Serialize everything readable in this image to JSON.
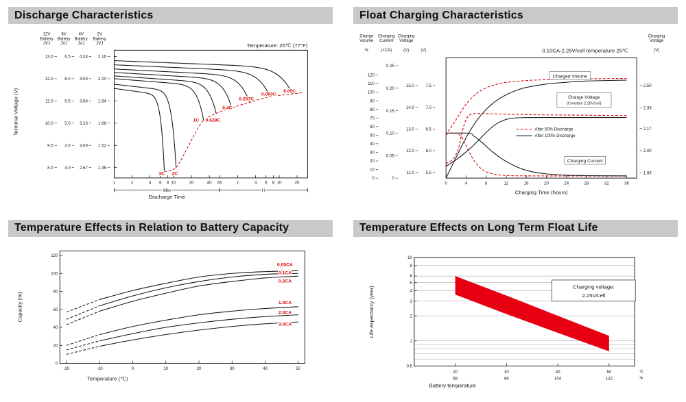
{
  "colors": {
    "red": "#d40000",
    "band_red": "#e60012",
    "header_bg": "#c9c9c9",
    "ink": "#161616"
  },
  "panels": [
    {
      "title": "Discharge Characteristics"
    },
    {
      "title": "Float Charging Characteristics"
    },
    {
      "title": "Temperature Effects in Relation to Battery Capacity"
    },
    {
      "title": "Temperature Effects on Long Term Float Life"
    }
  ],
  "chart_data": [
    {
      "id": "discharge-characteristics",
      "type": "line",
      "title": "Discharge Characteristics",
      "annotation": "Temperature: 25℃ (77°F)",
      "xlabel": "Discharge Time",
      "ylabel": "Terminal Voltage (V)",
      "x_scale": "log",
      "x_regions": [
        {
          "label": "Min",
          "tick_minutes": [
            1,
            2,
            4,
            6,
            8,
            10,
            20,
            40,
            60
          ],
          "tick_labels": [
            "1",
            "2",
            "4",
            "6",
            "8",
            "10",
            "20",
            "40",
            "60"
          ]
        },
        {
          "label": "H",
          "tick_minutes": [
            120,
            240,
            360,
            480,
            600,
            1200
          ],
          "tick_labels": [
            "2",
            "4",
            "6",
            "8",
            "10",
            "20"
          ]
        }
      ],
      "y_axis_columns": [
        {
          "header": [
            "12V",
            "Battery",
            "JVJ"
          ],
          "ticks": [
            "13.0",
            "12.0",
            "11.0",
            "10.0",
            "9.0",
            "8.0"
          ]
        },
        {
          "header": [
            "6V",
            "Battery",
            "JVJ"
          ],
          "ticks": [
            "6.5",
            "6.0",
            "5.5",
            "5.0",
            "4.5",
            "4.0"
          ]
        },
        {
          "header": [
            "4V",
            "Battery",
            "JVJ"
          ],
          "ticks": [
            "4.33",
            "4.00",
            "3.66",
            "3.33",
            "3.00",
            "2.67"
          ]
        },
        {
          "header": [
            "2V",
            "Battery",
            "JVJ"
          ],
          "ticks": [
            "2.16",
            "2.00",
            "1.84",
            "1.68",
            "1.52",
            "1.36"
          ]
        }
      ],
      "y_cell_ticks": [
        2.16,
        2.0,
        1.84,
        1.68,
        1.52,
        1.36
      ],
      "curves": [
        {
          "label": "3C",
          "end_min": 7,
          "v_start": 1.93,
          "v_end": 1.33,
          "label_at": [
            6.3,
            1.307
          ]
        },
        {
          "label": "2C",
          "end_min": 11,
          "v_start": 1.96,
          "v_end": 1.36,
          "label_at": [
            10.5,
            1.307
          ]
        },
        {
          "label": "1C",
          "end_min": 32,
          "v_start": 2.0,
          "v_end": 1.7,
          "label_at": [
            24,
            1.69
          ]
        },
        {
          "label": "0.628C",
          "end_min": 52,
          "v_start": 2.02,
          "v_end": 1.75,
          "label_at": [
            46,
            1.69
          ]
        },
        {
          "label": "0.4C",
          "end_min": 95,
          "v_start": 2.045,
          "v_end": 1.79,
          "label_at": [
            80,
            1.78
          ]
        },
        {
          "label": "0.207C",
          "end_min": 190,
          "v_start": 2.07,
          "v_end": 1.83,
          "label_at": [
            168,
            1.845
          ]
        },
        {
          "label": "0.093C",
          "end_min": 420,
          "v_start": 2.1,
          "v_end": 1.87,
          "label_at": [
            400,
            1.878
          ]
        },
        {
          "label": "0.05C",
          "end_min": 1000,
          "v_start": 2.13,
          "v_end": 1.89,
          "label_at": [
            900,
            1.9
          ]
        }
      ],
      "cutoff_locus": [
        [
          7,
          1.33
        ],
        [
          11,
          1.36
        ],
        [
          17,
          1.5
        ],
        [
          24,
          1.62
        ],
        [
          32,
          1.7
        ],
        [
          52,
          1.75
        ],
        [
          95,
          1.79
        ],
        [
          190,
          1.83
        ],
        [
          420,
          1.87
        ],
        [
          1000,
          1.89
        ],
        [
          1500,
          1.9
        ]
      ]
    },
    {
      "id": "float-charging-characteristics",
      "type": "line",
      "title": "Float Charging Characteristics",
      "annotation": "0.10CA-2.25V/cell  temperature 25℃",
      "xlabel": "Charging Time (hours)",
      "x_ticks": [
        0,
        4,
        8,
        12,
        16,
        20,
        24,
        28,
        32,
        36
      ],
      "left_axes": [
        {
          "header": [
            "Charge",
            "Volume"
          ],
          "unit": "%",
          "scale": "volume",
          "ticks": [
            "0",
            "10",
            "20",
            "30",
            "40",
            "50",
            "60",
            "70",
            "80",
            "90",
            "100",
            "110",
            "120"
          ]
        },
        {
          "header": [
            "Charging",
            "Current"
          ],
          "unit": "(×CA)",
          "scale": "current",
          "ticks": [
            "0",
            "0.05",
            "0.10",
            "0.15",
            "0.20",
            "0.25"
          ]
        },
        {
          "header": [
            "Charging",
            "Voltage"
          ],
          "unit": "(V)",
          "scale": "voltage",
          "cell_divisor": 6,
          "ticks": [
            "11.0",
            "12.0",
            "13.0",
            "14.0",
            "15.0"
          ]
        },
        {
          "header": [],
          "unit": "(V)",
          "scale": "voltage",
          "cell_divisor": 3,
          "ticks": [
            "5.5",
            "6.0",
            "6.5",
            "7.0",
            "7.5"
          ]
        }
      ],
      "right_axis": {
        "header": [
          "Charging",
          "Voltage"
        ],
        "unit": "(V)",
        "ticks": [
          "1.83",
          "2.00",
          "2.17",
          "2.33",
          "2.50"
        ]
      },
      "legend": [
        {
          "label": "After  50% Discharge",
          "style": "dashed-red"
        },
        {
          "label": "After 100% Discharge",
          "style": "solid-black"
        }
      ],
      "series": [
        {
          "name": "Charged Volume (after 50% discharge)",
          "style": "dashed-red",
          "axis": "volume",
          "points": [
            [
              0,
              50
            ],
            [
              2,
              68
            ],
            [
              4,
              86
            ],
            [
              6,
              98
            ],
            [
              8,
              105
            ],
            [
              10,
              109
            ],
            [
              12,
              111.5
            ],
            [
              16,
              113.5
            ],
            [
              20,
              114.5
            ],
            [
              28,
              115.5
            ],
            [
              36,
              116
            ]
          ]
        },
        {
          "name": "Charged Volume (after 100% discharge)",
          "style": "solid-black",
          "axis": "volume",
          "points": [
            [
              0,
              0
            ],
            [
              2,
              24
            ],
            [
              4,
              47
            ],
            [
              6,
              66
            ],
            [
              8,
              80
            ],
            [
              10,
              90
            ],
            [
              12,
              97
            ],
            [
              14,
              102
            ],
            [
              16,
              105.5
            ],
            [
              20,
              109.5
            ],
            [
              24,
              111.5
            ],
            [
              28,
              113
            ],
            [
              36,
              114
            ]
          ]
        },
        {
          "name": "Charge Voltage (after 50% discharge)",
          "style": "dashed-red",
          "axis": "voltage",
          "points": [
            [
              0,
              1.9
            ],
            [
              1.5,
              1.94
            ],
            [
              2.5,
              2.02
            ],
            [
              3.2,
              2.14
            ],
            [
              4,
              2.24
            ],
            [
              5,
              2.28
            ],
            [
              7,
              2.285
            ],
            [
              12,
              2.28
            ],
            [
              20,
              2.275
            ],
            [
              36,
              2.27
            ]
          ]
        },
        {
          "name": "Charge Voltage (after 100% discharge)",
          "style": "solid-black",
          "axis": "voltage",
          "points": [
            [
              0,
              1.88
            ],
            [
              2,
              1.93
            ],
            [
              4,
              1.99
            ],
            [
              6,
              2.06
            ],
            [
              8,
              2.14
            ],
            [
              10,
              2.205
            ],
            [
              12,
              2.24
            ],
            [
              14,
              2.252
            ],
            [
              18,
              2.255
            ],
            [
              26,
              2.255
            ],
            [
              36,
              2.255
            ]
          ]
        },
        {
          "name": "Charging Current (after 50% discharge)",
          "style": "dashed-red",
          "axis": "current",
          "points": [
            [
              0,
              0.1
            ],
            [
              2,
              0.1
            ],
            [
              3,
              0.093
            ],
            [
              4,
              0.072
            ],
            [
              5,
              0.05
            ],
            [
              6,
              0.033
            ],
            [
              7,
              0.021
            ],
            [
              8,
              0.014
            ],
            [
              10,
              0.008
            ],
            [
              12,
              0.006
            ],
            [
              16,
              0.005
            ],
            [
              36,
              0.0045
            ]
          ]
        },
        {
          "name": "Charging Current (after 100% discharge)",
          "style": "solid-black",
          "axis": "current",
          "points": [
            [
              0,
              0.1
            ],
            [
              4.5,
              0.1
            ],
            [
              5.5,
              0.094
            ],
            [
              7,
              0.081
            ],
            [
              9,
              0.061
            ],
            [
              11,
              0.044
            ],
            [
              13,
              0.031
            ],
            [
              15,
              0.021
            ],
            [
              17,
              0.0145
            ],
            [
              20,
              0.0095
            ],
            [
              24,
              0.0065
            ],
            [
              28,
              0.0055
            ],
            [
              36,
              0.005
            ]
          ]
        }
      ],
      "curve_labels": [
        {
          "text": "Charged Volume",
          "at": [
            21,
            117
          ],
          "axis": "volume"
        },
        {
          "text": "Charge Voltage",
          "sub": "(Constant 2.25V/cell)",
          "at": [
            22.5,
            2.4
          ],
          "axis": "voltage"
        },
        {
          "text": "Charging Current",
          "at": [
            24,
            0.035
          ],
          "axis": "current"
        }
      ]
    },
    {
      "id": "temperature-effects-battery-capacity",
      "type": "line",
      "title": "Temperature Effects in Relation to Battery Capacity",
      "xlabel": "Temperature (℃)",
      "ylabel": "Capacity (%)",
      "x_ticks": [
        -20,
        -10,
        0,
        10,
        20,
        30,
        40,
        50
      ],
      "y_ticks": [
        0,
        20,
        40,
        60,
        80,
        100,
        120
      ],
      "xlim": [
        -22,
        52
      ],
      "ylim": [
        0,
        125
      ],
      "dashed_until": -10,
      "series": [
        {
          "name": "0.05CA",
          "label_at": [
            46,
            108
          ],
          "points": [
            [
              -20,
              57
            ],
            [
              -10,
              71
            ],
            [
              0,
              81
            ],
            [
              10,
              89
            ],
            [
              20,
              96
            ],
            [
              30,
              100
            ],
            [
              40,
              102
            ],
            [
              50,
              103
            ]
          ]
        },
        {
          "name": "0.1CA",
          "label_at": [
            46,
            99
          ],
          "points": [
            [
              -20,
              49
            ],
            [
              -10,
              64
            ],
            [
              0,
              75
            ],
            [
              10,
              84
            ],
            [
              20,
              91
            ],
            [
              30,
              96
            ],
            [
              40,
              99
            ],
            [
              50,
              100
            ]
          ]
        },
        {
          "name": "0.2CA",
          "label_at": [
            46,
            90
          ],
          "points": [
            [
              -20,
              43
            ],
            [
              -10,
              58
            ],
            [
              0,
              69
            ],
            [
              10,
              78
            ],
            [
              20,
              86
            ],
            [
              30,
              91
            ],
            [
              40,
              95
            ],
            [
              50,
              97
            ]
          ]
        },
        {
          "name": "1.0CA",
          "label_at": [
            46,
            66
          ],
          "points": [
            [
              -20,
              20
            ],
            [
              -10,
              32
            ],
            [
              0,
              41
            ],
            [
              10,
              48
            ],
            [
              20,
              54
            ],
            [
              30,
              58
            ],
            [
              40,
              61
            ],
            [
              50,
              63
            ]
          ]
        },
        {
          "name": "2.0CA",
          "label_at": [
            46,
            55
          ],
          "points": [
            [
              -20,
              15
            ],
            [
              -10,
              25
            ],
            [
              0,
              33
            ],
            [
              10,
              40
            ],
            [
              20,
              45
            ],
            [
              30,
              49
            ],
            [
              40,
              52
            ],
            [
              50,
              54
            ]
          ]
        },
        {
          "name": "3.0CA",
          "label_at": [
            46,
            42
          ],
          "points": [
            [
              -20,
              10
            ],
            [
              -10,
              19
            ],
            [
              0,
              26
            ],
            [
              10,
              32
            ],
            [
              20,
              37
            ],
            [
              30,
              41
            ],
            [
              40,
              44
            ],
            [
              50,
              46
            ]
          ]
        }
      ]
    },
    {
      "id": "temperature-effects-long-term-float-life",
      "type": "band",
      "title": "Temperature Effects on Long Term Float Life",
      "xlabel": "Battery temperature",
      "ylabel": "Life expectancy (year)",
      "annotation_lines": [
        "Charging voltage:",
        "2.25V/cell"
      ],
      "y_scale": "log",
      "ylim": [
        0.5,
        10
      ],
      "xlim": [
        12,
        55
      ],
      "y_ticks": [
        "10",
        "8",
        "6",
        "5",
        "4",
        "3",
        "2",
        "1",
        "0.5"
      ],
      "gridlines": [
        0.6,
        0.7,
        0.8,
        0.9,
        1,
        2,
        3,
        4,
        5,
        6,
        8,
        10
      ],
      "x_ticks": [
        {
          "c": "20",
          "f": "68"
        },
        {
          "c": "30",
          "f": "86"
        },
        {
          "c": "40",
          "f": "104"
        },
        {
          "c": "50",
          "f": "122"
        }
      ],
      "x_unit_labels": [
        "℃",
        "℉"
      ],
      "band_color": "#e60012",
      "band_upper": [
        [
          20,
          6.0
        ],
        [
          30,
          3.5
        ],
        [
          40,
          2.0
        ],
        [
          50,
          1.15
        ]
      ],
      "band_lower": [
        [
          20,
          3.6
        ],
        [
          30,
          2.1
        ],
        [
          40,
          1.25
        ],
        [
          50,
          0.75
        ]
      ]
    }
  ]
}
